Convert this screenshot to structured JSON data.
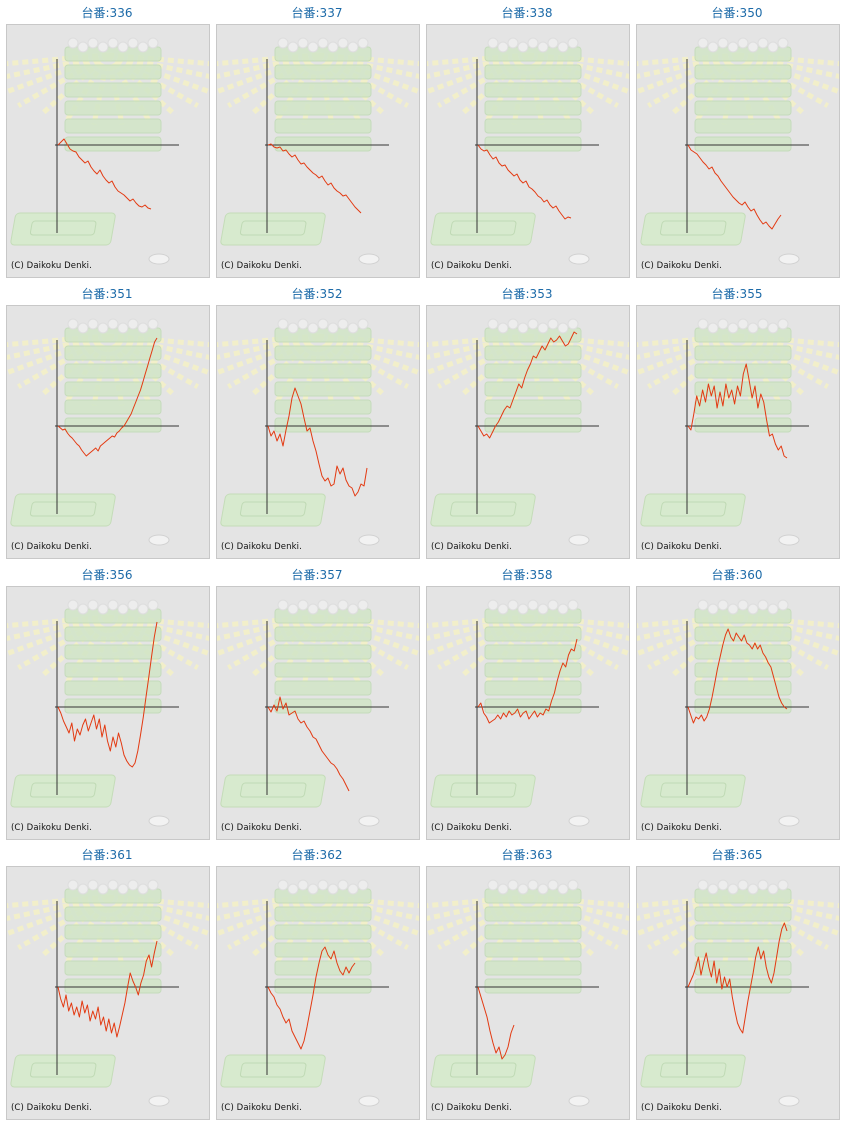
{
  "label_prefix": "台番:",
  "copyright": "(C) Daikoku Denki.",
  "colors": {
    "line": "#e33a12",
    "axis": "#333333",
    "panel_bg": "#e4e4e4",
    "label": "#1c6aa8"
  },
  "chart_data": [
    {
      "type": "line",
      "label": "336",
      "values": [
        0,
        3,
        6,
        1,
        -4,
        -6,
        -7,
        -12,
        -15,
        -18,
        -16,
        -22,
        -26,
        -29,
        -25,
        -31,
        -35,
        -38,
        -36,
        -42,
        -46,
        -48,
        -50,
        -53,
        -56,
        -54,
        -58,
        -61,
        -62,
        -60,
        -63,
        -64
      ]
    },
    {
      "type": "line",
      "label": "337",
      "values": [
        0,
        1,
        -2,
        -3,
        -2,
        -6,
        -5,
        -9,
        -12,
        -10,
        -15,
        -19,
        -18,
        -22,
        -25,
        -28,
        -30,
        -33,
        -31,
        -36,
        -40,
        -38,
        -43,
        -46,
        -48,
        -51,
        -50,
        -54,
        -58,
        -62,
        -65,
        -68
      ]
    },
    {
      "type": "line",
      "label": "338",
      "values": [
        0,
        -4,
        -6,
        -5,
        -10,
        -14,
        -12,
        -18,
        -21,
        -20,
        -25,
        -28,
        -31,
        -29,
        -35,
        -38,
        -36,
        -42,
        -44,
        -47,
        -51,
        -53,
        -57,
        -55,
        -60,
        -63,
        -61,
        -66,
        -70,
        -74,
        -72,
        -73
      ]
    },
    {
      "type": "line",
      "label": "350",
      "values": [
        0,
        -5,
        -7,
        -9,
        -13,
        -17,
        -20,
        -24,
        -22,
        -28,
        -31,
        -36,
        -40,
        -44,
        -48,
        -52,
        -55,
        -58,
        -60,
        -57,
        -62,
        -66,
        -64,
        -70,
        -75,
        -79,
        -77,
        -81,
        -84,
        -79,
        -74,
        -70
      ]
    },
    {
      "type": "line",
      "label": "351",
      "values": [
        0,
        -2,
        -4,
        -3,
        -7,
        -10,
        -12,
        -15,
        -18,
        -20,
        -24,
        -27,
        -30,
        -28,
        -26,
        -24,
        -22,
        -25,
        -20,
        -18,
        -16,
        -14,
        -12,
        -10,
        -11,
        -7,
        -5,
        -2,
        0,
        4,
        8,
        12,
        18,
        24,
        30,
        36,
        44,
        52,
        60,
        68,
        76,
        84,
        88
      ]
    },
    {
      "type": "line",
      "label": "352",
      "values": [
        0,
        -10,
        -5,
        -15,
        -8,
        -20,
        -4,
        10,
        28,
        38,
        30,
        22,
        8,
        -5,
        -2,
        -15,
        -25,
        -38,
        -50,
        -55,
        -52,
        -60,
        -58,
        -40,
        -48,
        -42,
        -54,
        -60,
        -62,
        -70,
        -66,
        -58,
        -60,
        -42
      ]
    },
    {
      "type": "line",
      "label": "353",
      "values": [
        0,
        -5,
        -10,
        -8,
        -12,
        -6,
        0,
        4,
        10,
        16,
        20,
        18,
        26,
        34,
        42,
        38,
        48,
        56,
        62,
        70,
        68,
        74,
        80,
        76,
        82,
        88,
        84,
        86,
        90,
        85,
        80,
        82,
        88,
        94,
        92
      ]
    },
    {
      "type": "line",
      "label": "355",
      "values": [
        0,
        -4,
        12,
        30,
        20,
        36,
        24,
        42,
        30,
        40,
        18,
        34,
        20,
        42,
        28,
        36,
        22,
        40,
        30,
        52,
        62,
        46,
        28,
        40,
        18,
        32,
        24,
        6,
        -10,
        -8,
        -18,
        -24,
        -20,
        -30,
        -32
      ]
    },
    {
      "type": "line",
      "label": "356",
      "values": [
        0,
        -6,
        -14,
        -20,
        -26,
        -16,
        -34,
        -22,
        -28,
        -18,
        -12,
        -24,
        -16,
        -8,
        -22,
        -12,
        -30,
        -18,
        -34,
        -44,
        -30,
        -40,
        -26,
        -36,
        -48,
        -54,
        -58,
        -60,
        -56,
        -44,
        -28,
        -10,
        10,
        30,
        50,
        70,
        85
      ]
    },
    {
      "type": "line",
      "label": "357",
      "values": [
        0,
        -5,
        2,
        -4,
        10,
        -2,
        4,
        -8,
        -6,
        -4,
        -12,
        -16,
        -14,
        -20,
        -24,
        -30,
        -32,
        -38,
        -44,
        -48,
        -52,
        -56,
        -58,
        -62,
        -68,
        -72,
        -78,
        -84
      ]
    },
    {
      "type": "line",
      "label": "358",
      "values": [
        0,
        4,
        -6,
        -10,
        -16,
        -14,
        -12,
        -8,
        -12,
        -6,
        -10,
        -4,
        -8,
        -6,
        -2,
        -10,
        -6,
        -4,
        -12,
        -8,
        -4,
        -10,
        -6,
        -8,
        -2,
        -4,
        6,
        14,
        26,
        36,
        44,
        40,
        52,
        58,
        56,
        68
      ]
    },
    {
      "type": "line",
      "label": "360",
      "values": [
        0,
        -8,
        -16,
        -10,
        -12,
        -8,
        -14,
        -10,
        -2,
        10,
        24,
        38,
        50,
        62,
        72,
        78,
        70,
        66,
        74,
        70,
        66,
        72,
        64,
        62,
        58,
        64,
        58,
        62,
        54,
        50,
        44,
        40,
        30,
        20,
        10,
        4,
        0,
        -2
      ]
    },
    {
      "type": "line",
      "label": "361",
      "values": [
        0,
        -12,
        -20,
        -8,
        -24,
        -16,
        -28,
        -20,
        -30,
        -14,
        -26,
        -18,
        -34,
        -24,
        -32,
        -20,
        -38,
        -30,
        -44,
        -32,
        -46,
        -36,
        -50,
        -40,
        -28,
        -16,
        0,
        14,
        6,
        0,
        -8,
        4,
        12,
        26,
        32,
        20,
        34,
        46
      ]
    },
    {
      "type": "line",
      "label": "362",
      "values": [
        0,
        -6,
        -10,
        -18,
        -22,
        -30,
        -36,
        -32,
        -44,
        -50,
        -56,
        -62,
        -54,
        -40,
        -24,
        -8,
        10,
        24,
        36,
        40,
        32,
        28,
        36,
        24,
        16,
        12,
        20,
        14,
        20,
        24
      ]
    },
    {
      "type": "line",
      "label": "363",
      "values": [
        0,
        -10,
        -20,
        -30,
        -44,
        -56,
        -66,
        -60,
        -72,
        -68,
        -60,
        -46,
        -38
      ]
    },
    {
      "type": "line",
      "label": "365",
      "values": [
        0,
        6,
        12,
        20,
        30,
        12,
        24,
        34,
        20,
        10,
        26,
        4,
        18,
        -2,
        10,
        0,
        8,
        -10,
        -24,
        -36,
        -42,
        -46,
        -30,
        -14,
        0,
        14,
        30,
        40,
        28,
        36,
        20,
        10,
        4,
        14,
        30,
        46,
        58,
        64,
        56
      ]
    }
  ]
}
